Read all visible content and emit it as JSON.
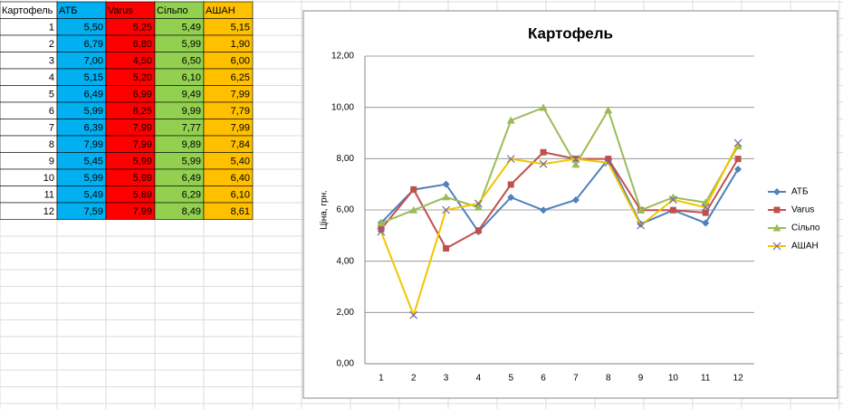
{
  "table": {
    "header": [
      "Картофель",
      "АТБ",
      "Varus",
      "Сільпо",
      "АШАН"
    ],
    "rows": [
      [
        "1",
        "5,50",
        "5,25",
        "5,49",
        "5,15"
      ],
      [
        "2",
        "6,79",
        "6,80",
        "5,99",
        "1,90"
      ],
      [
        "3",
        "7,00",
        "4,50",
        "6,50",
        "6,00"
      ],
      [
        "4",
        "5,15",
        "5,20",
        "6,10",
        "6,25"
      ],
      [
        "5",
        "6,49",
        "6,99",
        "9,49",
        "7,99"
      ],
      [
        "6",
        "5,99",
        "8,25",
        "9,99",
        "7,79"
      ],
      [
        "7",
        "6,39",
        "7,99",
        "7,77",
        "7,99"
      ],
      [
        "8",
        "7,99",
        "7,99",
        "9,89",
        "7,84"
      ],
      [
        "9",
        "5,45",
        "5,99",
        "5,99",
        "5,40"
      ],
      [
        "10",
        "5,99",
        "5,99",
        "6,49",
        "6,40"
      ],
      [
        "11",
        "5,49",
        "5,89",
        "6,29",
        "6,10"
      ],
      [
        "12",
        "7,59",
        "7,99",
        "8,49",
        "8,61"
      ]
    ],
    "fills": [
      "#ffffff",
      "#00b0f0",
      "#ff0000",
      "#92d050",
      "#ffc000"
    ]
  },
  "chart_data": {
    "type": "line",
    "title": "Картофель",
    "y_label": "Ціна, грн.",
    "categories": [
      "1",
      "2",
      "3",
      "4",
      "5",
      "6",
      "7",
      "8",
      "9",
      "10",
      "11",
      "12"
    ],
    "series": [
      {
        "name": "АТБ",
        "color": "#4f81bd",
        "marker": "diamond",
        "values": [
          5.5,
          6.79,
          7.0,
          5.15,
          6.49,
          5.99,
          6.39,
          7.99,
          5.45,
          5.99,
          5.49,
          7.59
        ]
      },
      {
        "name": "Varus",
        "color": "#c0504d",
        "marker": "square",
        "values": [
          5.25,
          6.8,
          4.5,
          5.2,
          6.99,
          8.25,
          7.99,
          7.99,
          5.99,
          5.99,
          5.89,
          7.99
        ]
      },
      {
        "name": "Сільпо",
        "color": "#9bbb59",
        "marker": "triangle",
        "values": [
          5.49,
          5.99,
          6.5,
          6.1,
          9.49,
          9.99,
          7.77,
          9.89,
          5.99,
          6.49,
          6.29,
          8.49
        ]
      },
      {
        "name": "АШАН",
        "color": "#f2c500",
        "marker": "x",
        "values": [
          5.15,
          1.9,
          6.0,
          6.25,
          7.99,
          7.79,
          7.99,
          7.84,
          5.4,
          6.4,
          6.1,
          8.61
        ]
      }
    ],
    "ylim": [
      0,
      12
    ],
    "yticks": [
      {
        "value": 0,
        "label": "0,00"
      },
      {
        "value": 2,
        "label": "2,00"
      },
      {
        "value": 4,
        "label": "4,00"
      },
      {
        "value": 6,
        "label": "6,00"
      },
      {
        "value": 8,
        "label": "8,00"
      },
      {
        "value": 10,
        "label": "10,00"
      },
      {
        "value": 12,
        "label": "12,00"
      }
    ],
    "grid": true,
    "legend": "right"
  }
}
